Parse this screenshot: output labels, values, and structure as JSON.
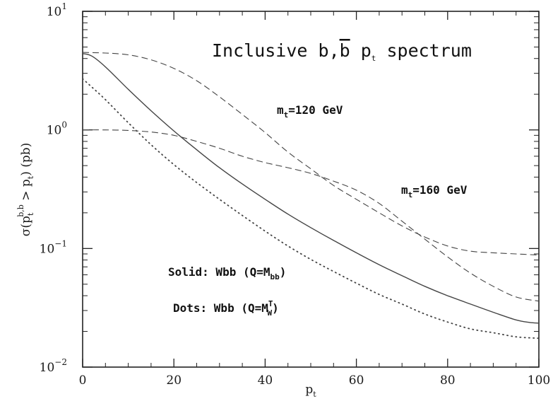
{
  "chart_data": {
    "type": "line",
    "title": "Inclusive b,b̅ p_t spectrum",
    "title_parts": {
      "pre": "Inclusive b,",
      "bbar": "b",
      "mid": " p",
      "sub": "t",
      "post": " spectrum"
    },
    "xlabel": "p_t",
    "xlabel_parts": {
      "base": "p",
      "sub": "t"
    },
    "ylabel": "σ(p_t^{b,b} > p_t) (pb)",
    "ylabel_parts": {
      "a": "σ(p",
      "sub": "t",
      "sup": "b,b",
      "b": " > p",
      "sub2": "t",
      "c": ")  (pb)"
    },
    "xlim": [
      0,
      100
    ],
    "ylim": [
      0.01,
      10
    ],
    "yscale": "log",
    "grid": false,
    "x_ticks": [
      0,
      20,
      40,
      60,
      80,
      100
    ],
    "x_tick_labels": [
      "0",
      "20",
      "40",
      "60",
      "80",
      "100"
    ],
    "y_ticks": [
      {
        "base": "10",
        "exp": "1"
      },
      {
        "base": "10",
        "exp": "0"
      },
      {
        "base": "10",
        "exp": "−1"
      },
      {
        "base": "10",
        "exp": "−2"
      }
    ],
    "series": [
      {
        "style": "solid",
        "x": [
          0,
          2,
          5,
          10,
          15,
          20,
          25,
          30,
          35,
          40,
          45,
          50,
          55,
          60,
          65,
          70,
          75,
          80,
          85,
          90,
          95,
          98,
          100
        ],
        "values": [
          4.4,
          4.2,
          3.4,
          2.2,
          1.45,
          0.98,
          0.68,
          0.48,
          0.35,
          0.26,
          0.195,
          0.15,
          0.117,
          0.092,
          0.073,
          0.059,
          0.048,
          0.04,
          0.034,
          0.029,
          0.025,
          0.0238,
          0.0235
        ]
      },
      {
        "style": "dotted",
        "x": [
          0,
          2,
          5,
          10,
          15,
          20,
          25,
          30,
          35,
          40,
          45,
          50,
          55,
          60,
          65,
          70,
          75,
          80,
          85,
          90,
          95,
          100
        ],
        "values": [
          2.7,
          2.3,
          1.8,
          1.15,
          0.75,
          0.51,
          0.36,
          0.26,
          0.19,
          0.14,
          0.105,
          0.081,
          0.064,
          0.051,
          0.041,
          0.034,
          0.028,
          0.024,
          0.021,
          0.0195,
          0.018,
          0.0175
        ]
      },
      {
        "style": "dashed",
        "x": [
          0,
          5,
          10,
          15,
          20,
          25,
          30,
          35,
          40,
          45,
          50,
          55,
          60,
          65,
          70,
          75,
          80,
          85,
          90,
          95,
          100
        ],
        "values": [
          4.5,
          4.45,
          4.3,
          3.9,
          3.3,
          2.6,
          1.9,
          1.35,
          0.95,
          0.65,
          0.47,
          0.34,
          0.26,
          0.2,
          0.155,
          0.125,
          0.105,
          0.095,
          0.092,
          0.09,
          0.088
        ]
      },
      {
        "style": "dashed",
        "x": [
          0,
          5,
          10,
          15,
          20,
          25,
          30,
          35,
          40,
          45,
          50,
          55,
          60,
          65,
          70,
          75,
          80,
          85,
          90,
          95,
          100
        ],
        "values": [
          1.0,
          1.0,
          0.99,
          0.96,
          0.9,
          0.8,
          0.7,
          0.6,
          0.53,
          0.48,
          0.43,
          0.37,
          0.31,
          0.24,
          0.17,
          0.12,
          0.085,
          0.062,
          0.048,
          0.039,
          0.036
        ]
      }
    ],
    "annotations": {
      "mt120": {
        "a": "m",
        "sub": "t",
        "b": "=120 GeV"
      },
      "mt160": {
        "a": "m",
        "sub": "t",
        "b": "=160 GeV"
      },
      "solid": {
        "a": "Solid:  Wbb  (Q=M",
        "sub": "bb",
        "b": ")"
      },
      "dots": {
        "a": "Dots:  Wbb  (Q=M",
        "sup": "T",
        "sub": "W",
        "b": ")"
      }
    },
    "line_color": "#444444"
  }
}
